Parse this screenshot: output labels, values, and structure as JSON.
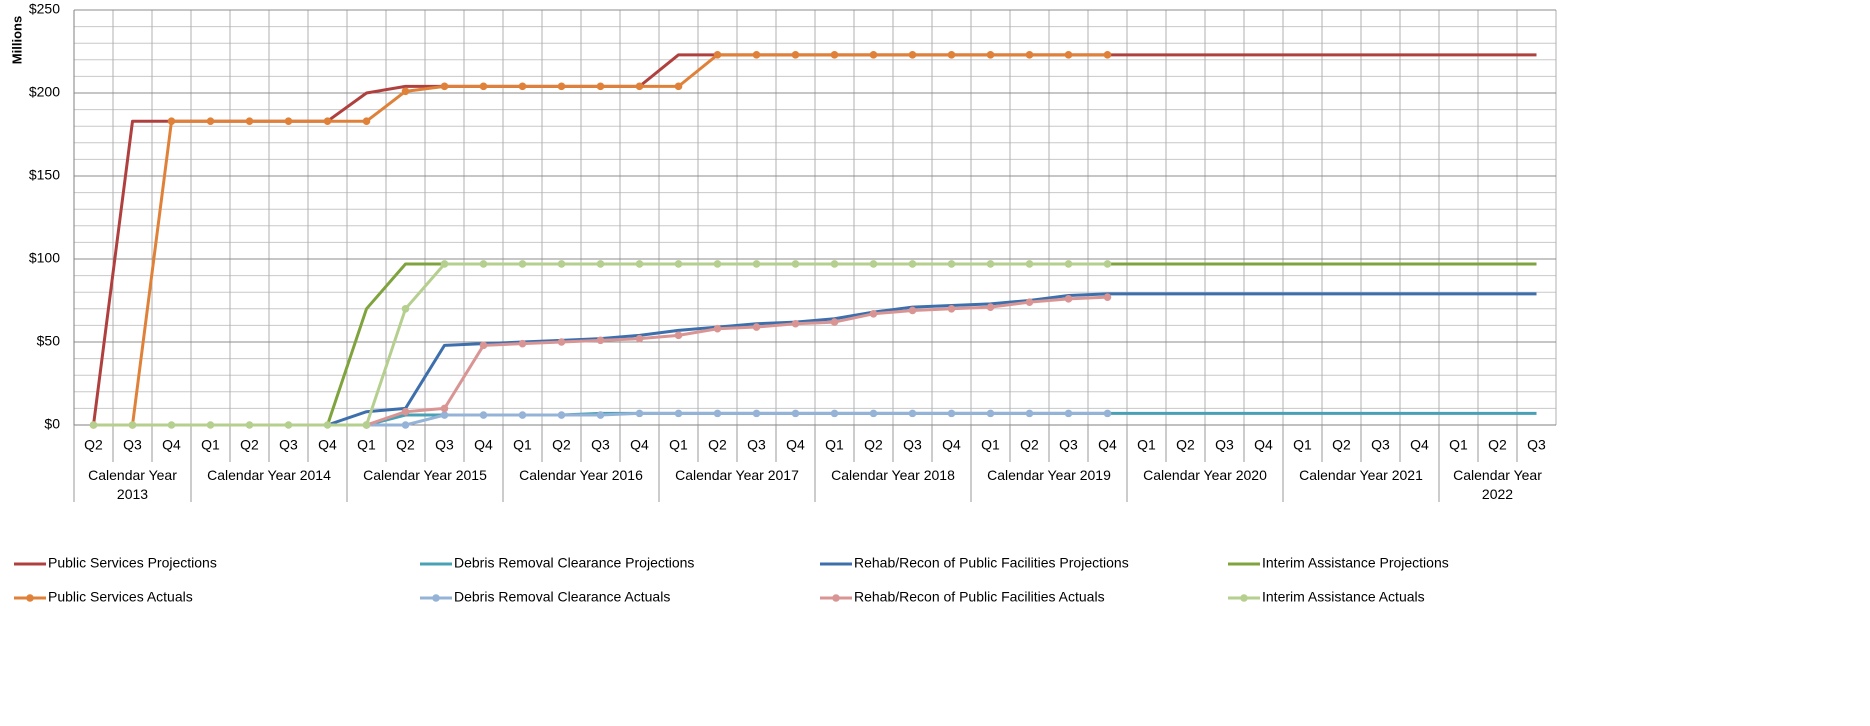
{
  "chart_data": {
    "type": "line",
    "y_axis_label": "Millions",
    "categories": [
      "Q2",
      "Q3",
      "Q4",
      "Q1",
      "Q2",
      "Q3",
      "Q4",
      "Q1",
      "Q2",
      "Q3",
      "Q4",
      "Q1",
      "Q2",
      "Q3",
      "Q4",
      "Q1",
      "Q2",
      "Q3",
      "Q4",
      "Q1",
      "Q2",
      "Q3",
      "Q4",
      "Q1",
      "Q2",
      "Q3",
      "Q4",
      "Q1",
      "Q2",
      "Q3",
      "Q4",
      "Q1",
      "Q2",
      "Q3",
      "Q4",
      "Q1",
      "Q2",
      "Q3"
    ],
    "category_groups": [
      {
        "label": "Calendar Year 2013",
        "span": 3
      },
      {
        "label": "Calendar Year 2014",
        "span": 4
      },
      {
        "label": "Calendar Year 2015",
        "span": 4
      },
      {
        "label": "Calendar Year 2016",
        "span": 4
      },
      {
        "label": "Calendar Year 2017",
        "span": 4
      },
      {
        "label": "Calendar Year 2018",
        "span": 4
      },
      {
        "label": "Calendar Year 2019",
        "span": 4
      },
      {
        "label": "Calendar Year 2020",
        "span": 4
      },
      {
        "label": "Calendar Year 2021",
        "span": 4
      },
      {
        "label": "Calendar Year 2022",
        "span": 3
      }
    ],
    "ylim": [
      0,
      250
    ],
    "yticks": [
      {
        "value": 0,
        "label": "$0"
      },
      {
        "value": 50,
        "label": "$50"
      },
      {
        "value": 100,
        "label": "$100"
      },
      {
        "value": 150,
        "label": "$150"
      },
      {
        "value": 200,
        "label": "$200"
      },
      {
        "value": 250,
        "label": "$250"
      }
    ],
    "minor_yticks": [
      10,
      20,
      30,
      40,
      60,
      70,
      80,
      90,
      110,
      120,
      130,
      140,
      160,
      170,
      180,
      190,
      210,
      220,
      230,
      240
    ],
    "grid": true,
    "legend_position": "bottom",
    "series": [
      {
        "name": "Public Services Projections",
        "color": "#b0403e",
        "marker": false,
        "values": [
          0,
          183,
          183,
          183,
          183,
          183,
          183,
          200,
          204,
          204,
          204,
          204,
          204,
          204,
          204,
          223,
          223,
          223,
          223,
          223,
          223,
          223,
          223,
          223,
          223,
          223,
          223,
          223,
          223,
          223,
          223,
          223,
          223,
          223,
          223,
          223,
          223,
          223
        ]
      },
      {
        "name": "Debris Removal Clearance Projections",
        "color": "#4aa0b5",
        "marker": false,
        "values": [
          null,
          null,
          null,
          null,
          null,
          null,
          null,
          0,
          6,
          6,
          6,
          6,
          6,
          7,
          7,
          7,
          7,
          7,
          7,
          7,
          7,
          7,
          7,
          7,
          7,
          7,
          7,
          7,
          7,
          7,
          7,
          7,
          7,
          7,
          7,
          7,
          7,
          7
        ]
      },
      {
        "name": "Rehab/Recon of Public Facilities Projections",
        "color": "#3d6fad",
        "marker": false,
        "values": [
          null,
          null,
          null,
          null,
          null,
          null,
          0,
          8,
          10,
          48,
          49,
          50,
          51,
          52,
          54,
          57,
          59,
          61,
          62,
          64,
          68,
          71,
          72,
          73,
          75,
          78,
          79,
          79,
          79,
          79,
          79,
          79,
          79,
          79,
          79,
          79,
          79,
          79
        ]
      },
      {
        "name": "Interim Assistance Projections",
        "color": "#7fa33d",
        "marker": false,
        "values": [
          0,
          0,
          0,
          0,
          0,
          0,
          0,
          70,
          97,
          97,
          97,
          97,
          97,
          97,
          97,
          97,
          97,
          97,
          97,
          97,
          97,
          97,
          97,
          97,
          97,
          97,
          97,
          97,
          97,
          97,
          97,
          97,
          97,
          97,
          97,
          97,
          97,
          97
        ]
      },
      {
        "name": "Public Services Actuals",
        "color": "#e0813a",
        "marker": true,
        "values": [
          0,
          0,
          183,
          183,
          183,
          183,
          183,
          183,
          201,
          204,
          204,
          204,
          204,
          204,
          204,
          204,
          223,
          223,
          223,
          223,
          223,
          223,
          223,
          223,
          223,
          223,
          223,
          null,
          null,
          null,
          null,
          null,
          null,
          null,
          null,
          null,
          null,
          null
        ]
      },
      {
        "name": "Debris Removal Clearance Actuals",
        "color": "#95b3d7",
        "marker": true,
        "values": [
          null,
          null,
          null,
          null,
          null,
          null,
          null,
          0,
          0,
          6,
          6,
          6,
          6,
          6,
          7,
          7,
          7,
          7,
          7,
          7,
          7,
          7,
          7,
          7,
          7,
          7,
          7,
          null,
          null,
          null,
          null,
          null,
          null,
          null,
          null,
          null,
          null,
          null
        ]
      },
      {
        "name": "Rehab/Recon of Public Facilities Actuals",
        "color": "#d99594",
        "marker": true,
        "values": [
          null,
          null,
          null,
          null,
          null,
          null,
          null,
          0,
          8,
          10,
          48,
          49,
          50,
          51,
          52,
          54,
          58,
          59,
          61,
          62,
          67,
          69,
          70,
          71,
          74,
          76,
          77,
          null,
          null,
          null,
          null,
          null,
          null,
          null,
          null,
          null,
          null,
          null
        ]
      },
      {
        "name": "Interim Assistance Actuals",
        "color": "#b5cf8f",
        "marker": true,
        "values": [
          0,
          0,
          0,
          0,
          0,
          0,
          0,
          0,
          70,
          97,
          97,
          97,
          97,
          97,
          97,
          97,
          97,
          97,
          97,
          97,
          97,
          97,
          97,
          97,
          97,
          97,
          97,
          null,
          null,
          null,
          null,
          null,
          null,
          null,
          null,
          null,
          null,
          null
        ]
      }
    ]
  }
}
